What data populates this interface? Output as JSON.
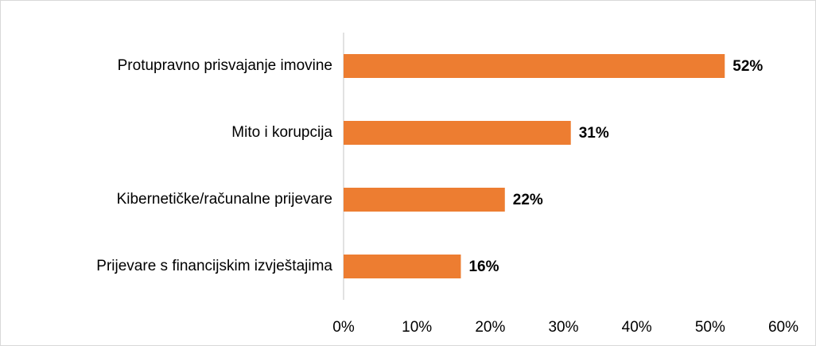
{
  "chart_data": {
    "type": "bar",
    "orientation": "horizontal",
    "categories": [
      "Protupravno prisvajanje imovine",
      "Mito i korupcija",
      "Kibernetičke/računalne prijevare",
      "Prijevare s financijskim izvještajima"
    ],
    "values": [
      52,
      31,
      22,
      16
    ],
    "value_labels": [
      "52%",
      "31%",
      "22%",
      "16%"
    ],
    "color": "#ed7d31",
    "xlim": [
      0,
      60
    ],
    "xticks": [
      {
        "value": 0,
        "label": "0%"
      },
      {
        "value": 10,
        "label": "10%"
      },
      {
        "value": 20,
        "label": "20%"
      },
      {
        "value": 30,
        "label": "30%"
      },
      {
        "value": 40,
        "label": "40%"
      },
      {
        "value": 50,
        "label": "50%"
      },
      {
        "value": 60,
        "label": "60%"
      }
    ],
    "grid": false
  }
}
